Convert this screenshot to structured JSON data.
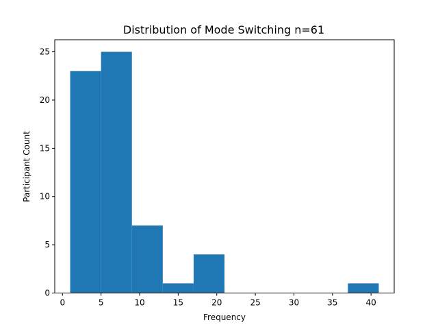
{
  "chart_data": {
    "type": "bar",
    "title": "Distribution of Mode Switching n=61",
    "xlabel": "Frequency",
    "ylabel": "Participant Count",
    "bins": [
      {
        "x0": 1,
        "x1": 5,
        "count": 23
      },
      {
        "x0": 5,
        "x1": 9,
        "count": 25
      },
      {
        "x0": 9,
        "x1": 13,
        "count": 7
      },
      {
        "x0": 13,
        "x1": 17,
        "count": 1
      },
      {
        "x0": 17,
        "x1": 21,
        "count": 4
      },
      {
        "x0": 21,
        "x1": 25,
        "count": 0
      },
      {
        "x0": 25,
        "x1": 29,
        "count": 0
      },
      {
        "x0": 29,
        "x1": 33,
        "count": 0
      },
      {
        "x0": 33,
        "x1": 37,
        "count": 0
      },
      {
        "x0": 37,
        "x1": 41,
        "count": 1
      }
    ],
    "xlim": [
      -1,
      43
    ],
    "ylim": [
      0,
      26.25
    ],
    "xticks": [
      0,
      5,
      10,
      15,
      20,
      25,
      30,
      35,
      40
    ],
    "yticks": [
      0,
      5,
      10,
      15,
      20,
      25
    ],
    "bar_color": "#1f77b4",
    "grid": false
  }
}
